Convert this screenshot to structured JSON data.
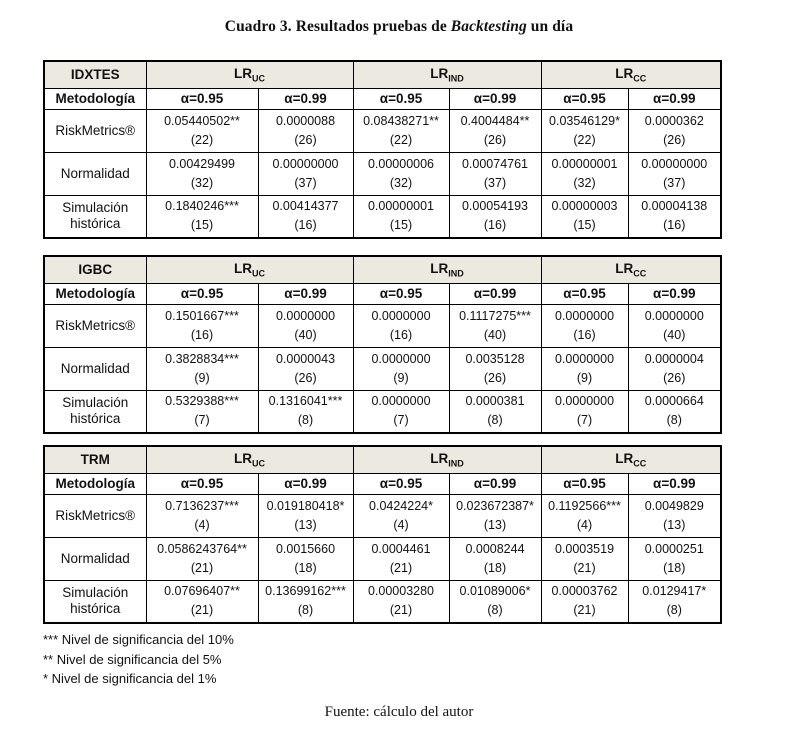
{
  "title": {
    "pre": "Cuadro 3. Resultados pruebas de ",
    "italic": "Backtesting",
    "post": " un día"
  },
  "colors": {
    "header_bg": "#ece9e1",
    "border": "#000000"
  },
  "tables": [
    {
      "name": "IDXTES",
      "method_label": "Metodología",
      "groups": [
        {
          "base": "LR",
          "sub": "UC"
        },
        {
          "base": "LR",
          "sub": "IND"
        },
        {
          "base": "LR",
          "sub": "CC"
        }
      ],
      "alpha_labels": [
        "α=0.95",
        "α=0.99",
        "α=0.95",
        "α=0.99",
        "α=0.95",
        "α=0.99"
      ],
      "rows": [
        {
          "label": "RiskMetrics®",
          "cells": [
            {
              "value": "0.05440502**",
              "n": "(22)"
            },
            {
              "value": "0.0000088",
              "n": "(26)"
            },
            {
              "value": "0.08438271**",
              "n": "(22)"
            },
            {
              "value": "0.4004484**",
              "n": "(26)"
            },
            {
              "value": "0.03546129*",
              "n": "(22)"
            },
            {
              "value": "0.0000362",
              "n": "(26)"
            }
          ]
        },
        {
          "label": "Normalidad",
          "cells": [
            {
              "value": "0.00429499",
              "n": "(32)"
            },
            {
              "value": "0.00000000",
              "n": "(37)"
            },
            {
              "value": "0.00000006",
              "n": "(32)"
            },
            {
              "value": "0.00074761",
              "n": "(37)"
            },
            {
              "value": "0.00000001",
              "n": "(32)"
            },
            {
              "value": "0.00000000",
              "n": "(37)"
            }
          ]
        },
        {
          "label": "Simulación histórica",
          "cells": [
            {
              "value": "0.1840246***",
              "n": "(15)"
            },
            {
              "value": "0.00414377",
              "n": "(16)"
            },
            {
              "value": "0.00000001",
              "n": "(15)"
            },
            {
              "value": "0.00054193",
              "n": "(16)"
            },
            {
              "value": "0.00000003",
              "n": "(15)"
            },
            {
              "value": "0.00004138",
              "n": "(16)"
            }
          ]
        }
      ]
    },
    {
      "name": "IGBC",
      "method_label": "Metodología",
      "groups": [
        {
          "base": "LR",
          "sub": "UC"
        },
        {
          "base": "LR",
          "sub": "IND"
        },
        {
          "base": "LR",
          "sub": "CC"
        }
      ],
      "alpha_labels": [
        "α=0.95",
        "α=0.99",
        "α=0.95",
        "α=0.99",
        "α=0.95",
        "α=0.99"
      ],
      "rows": [
        {
          "label": "RiskMetrics®",
          "cells": [
            {
              "value": "0.1501667***",
              "n": "(16)"
            },
            {
              "value": "0.0000000",
              "n": "(40)"
            },
            {
              "value": "0.0000000",
              "n": "(16)"
            },
            {
              "value": "0.1117275***",
              "n": "(40)"
            },
            {
              "value": "0.0000000",
              "n": "(16)"
            },
            {
              "value": "0.0000000",
              "n": "(40)"
            }
          ]
        },
        {
          "label": "Normalidad",
          "cells": [
            {
              "value": "0.3828834***",
              "n": "(9)"
            },
            {
              "value": "0.0000043",
              "n": "(26)"
            },
            {
              "value": "0.0000000",
              "n": "(9)"
            },
            {
              "value": "0.0035128",
              "n": "(26)"
            },
            {
              "value": "0.0000000",
              "n": "(9)"
            },
            {
              "value": "0.0000004",
              "n": "(26)"
            }
          ]
        },
        {
          "label": "Simulación histórica",
          "cells": [
            {
              "value": "0.5329388***",
              "n": "(7)"
            },
            {
              "value": "0.1316041***",
              "n": "(8)"
            },
            {
              "value": "0.0000000",
              "n": "(7)"
            },
            {
              "value": "0.0000381",
              "n": "(8)"
            },
            {
              "value": "0.0000000",
              "n": "(7)"
            },
            {
              "value": "0.0000664",
              "n": "(8)"
            }
          ]
        }
      ]
    },
    {
      "name": "TRM",
      "method_label": "Metodología",
      "groups": [
        {
          "base": "LR",
          "sub": "UC"
        },
        {
          "base": "LR",
          "sub": "IND"
        },
        {
          "base": "LR",
          "sub": "CC"
        }
      ],
      "alpha_labels": [
        "α=0.95",
        "α=0.99",
        "α=0.95",
        "α=0.99",
        "α=0.95",
        "α=0.99"
      ],
      "rows": [
        {
          "label": "RiskMetrics®",
          "cells": [
            {
              "value": "0.7136237***",
              "n": "(4)"
            },
            {
              "value": "0.019180418*",
              "n": "(13)"
            },
            {
              "value": "0.0424224*",
              "n": "(4)"
            },
            {
              "value": "0.023672387*",
              "n": "(13)"
            },
            {
              "value": "0.1192566***",
              "n": "(4)"
            },
            {
              "value": "0.0049829",
              "n": "(13)"
            }
          ]
        },
        {
          "label": "Normalidad",
          "cells": [
            {
              "value": "0.0586243764**",
              "n": "(21)"
            },
            {
              "value": "0.0015660",
              "n": "(18)"
            },
            {
              "value": "0.0004461",
              "n": "(21)"
            },
            {
              "value": "0.0008244",
              "n": "(18)"
            },
            {
              "value": "0.0003519",
              "n": "(21)"
            },
            {
              "value": "0.0000251",
              "n": "(18)"
            }
          ]
        },
        {
          "label": "Simulación histórica",
          "cells": [
            {
              "value": "0.07696407**",
              "n": "(21)"
            },
            {
              "value": "0.13699162***",
              "n": "(8)"
            },
            {
              "value": "0.00003280",
              "n": "(21)"
            },
            {
              "value": "0.01089006*",
              "n": "(8)"
            },
            {
              "value": "0.00003762",
              "n": "(21)"
            },
            {
              "value": "0.0129417*",
              "n": "(8)"
            }
          ]
        }
      ]
    }
  ],
  "footnotes": [
    "*** Nivel de significancia del 10%",
    "** Nivel de significancia del 5%",
    "* Nivel de significancia del 1%"
  ],
  "source": "Fuente: cálculo del autor"
}
